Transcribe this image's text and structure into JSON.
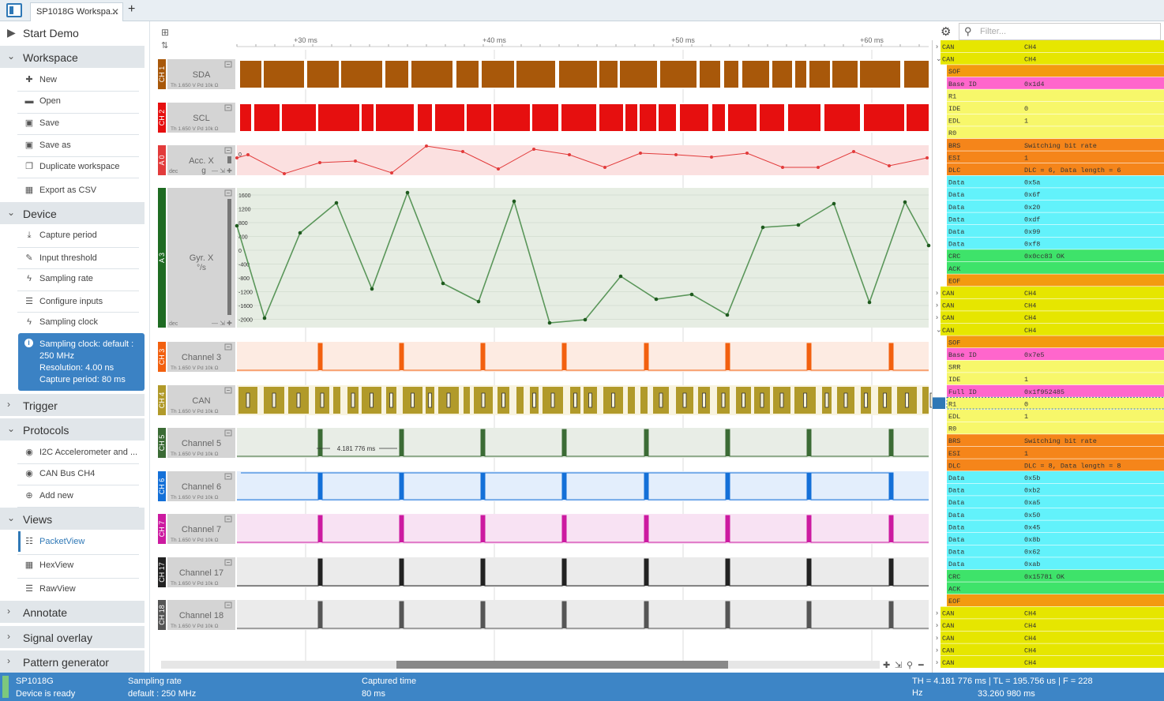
{
  "tab": {
    "title": "SP1018G Workspa...",
    "close": "✕",
    "new": "+"
  },
  "sidebar": {
    "start_demo": "Start Demo",
    "workspace": {
      "title": "Workspace",
      "items": [
        {
          "icon": "plus-icon",
          "label": "New"
        },
        {
          "icon": "folder-icon",
          "label": "Open"
        },
        {
          "icon": "save-icon",
          "label": "Save"
        },
        {
          "icon": "save-as-icon",
          "label": "Save as"
        },
        {
          "icon": "duplicate-icon",
          "label": "Duplicate workspace"
        },
        {
          "icon": "table-icon",
          "label": "Export as CSV"
        }
      ]
    },
    "device": {
      "title": "Device",
      "items": [
        {
          "icon": "download-icon",
          "label": "Capture period"
        },
        {
          "icon": "wrench-icon",
          "label": "Input threshold"
        },
        {
          "icon": "bolt-icon",
          "label": "Sampling rate"
        },
        {
          "icon": "list-icon",
          "label": "Configure inputs"
        },
        {
          "icon": "bolt-icon",
          "label": "Sampling clock"
        }
      ]
    },
    "info": [
      "Sampling clock: default :",
      "250 MHz",
      "Resolution: 4.00 ns",
      "Capture period: 80 ms"
    ],
    "trigger": "Trigger",
    "protocols": {
      "title": "Protocols",
      "items": [
        {
          "icon": "eye-icon",
          "label": "I2C Accelerometer and ..."
        },
        {
          "icon": "eye-icon",
          "label": "CAN Bus CH4"
        },
        {
          "icon": "plus-circle-icon",
          "label": "Add new"
        }
      ]
    },
    "views": {
      "title": "Views",
      "items": [
        {
          "icon": "packet-icon",
          "label": "PacketView"
        },
        {
          "icon": "hex-icon",
          "label": "HexView"
        },
        {
          "icon": "list-icon",
          "label": "RawView"
        }
      ]
    },
    "annotate": "Annotate",
    "signal_overlay": "Signal overlay",
    "pattern_generator": "Pattern generator"
  },
  "timeline": {
    "ticks": [
      "+30 ms",
      "+40 ms",
      "+50 ms",
      "+60 ms"
    ]
  },
  "channels": [
    {
      "tag": "CH 1",
      "name": "SDA",
      "sub": "Th 1.650 V   Pd 10k Ω",
      "color": "#a8580a",
      "bg": "#ffffff",
      "kind": "digital"
    },
    {
      "tag": "CH 2",
      "name": "SCL",
      "sub": "Th 1.650 V   Pd 10k Ω",
      "color": "#e60f0f",
      "bg": "#ffffff",
      "kind": "digital"
    },
    {
      "tag": "A 0",
      "name": "Acc. X",
      "unit": "g",
      "sub": "dec",
      "color": "#e23b3b",
      "bg": "#fbe0e0",
      "kind": "analog",
      "ylabel": "0"
    },
    {
      "tag": "A 3",
      "name": "Gyr. X",
      "unit": "°/s",
      "sub": "dec",
      "color": "#1e6b22",
      "bg": "#e6ede3",
      "kind": "analog2",
      "yticks": [
        "1600",
        "1200",
        "800",
        "400",
        "0",
        "-400",
        "-800",
        "-1200",
        "-1600",
        "-2000"
      ]
    },
    {
      "tag": "CH 3",
      "name": "Channel 3",
      "sub": "Th 1.650 V   Pd 10k Ω",
      "color": "#f2600f",
      "bg": "#fdebe2",
      "kind": "pulse"
    },
    {
      "tag": "CH 4",
      "name": "CAN",
      "sub": "Th 1.650 V   Pd 10k Ω",
      "color": "#b19a2a",
      "bg": "#f8f3df",
      "kind": "can"
    },
    {
      "tag": "CH 5",
      "name": "Channel 5",
      "sub": "Th 1.650 V   Pd 10k Ω",
      "color": "#3b6b35",
      "bg": "#e8ede6",
      "kind": "pulse",
      "measure": "4.181 776 ms"
    },
    {
      "tag": "CH 6",
      "name": "Channel 6",
      "sub": "Th 1.650 V   Pd 10k Ω",
      "color": "#1470d8",
      "bg": "#e3eefc",
      "kind": "pulse"
    },
    {
      "tag": "CH 7",
      "name": "Channel 7",
      "sub": "Th 1.650 V   Pd 10k Ω",
      "color": "#cc1aa0",
      "bg": "#f8e2f3",
      "kind": "pulse"
    },
    {
      "tag": "CH 17",
      "name": "Channel 17",
      "sub": "Th 1.650 V   Pd 10k Ω",
      "color": "#222222",
      "bg": "#ebebeb",
      "kind": "pulse"
    },
    {
      "tag": "CH 18",
      "name": "Channel 18",
      "sub": "Th 1.650 V   Pd 10k Ω",
      "color": "#555555",
      "bg": "#ebebeb",
      "kind": "pulse"
    }
  ],
  "packets": {
    "filter_placeholder": "Filter...",
    "rows": [
      [
        "CAN",
        "CH4",
        "#e6e600",
        "p",
        "c"
      ],
      [
        "CAN",
        "CH4",
        "#e6e600",
        "p",
        "o"
      ],
      [
        "SOF",
        "",
        "#f39a10",
        "f"
      ],
      [
        "Base ID",
        "0x1d4",
        "#ff66cc",
        "f"
      ],
      [
        "R1",
        "",
        "#f7f76a",
        "f"
      ],
      [
        "IDE",
        "0",
        "#f7f76a",
        "f"
      ],
      [
        "EDL",
        "1",
        "#f7f76a",
        "f"
      ],
      [
        "R0",
        "",
        "#f7f76a",
        "f"
      ],
      [
        "BRS",
        "Switching bit rate",
        "#f5851a",
        "f"
      ],
      [
        "ESI",
        "1",
        "#f5851a",
        "f"
      ],
      [
        "DLC",
        "DLC = 6, Data length = 6",
        "#f5851a",
        "f"
      ],
      [
        "Data",
        "0x5a",
        "#62f2fb",
        "f"
      ],
      [
        "Data",
        "0x6f",
        "#62f2fb",
        "f"
      ],
      [
        "Data",
        "0x20",
        "#62f2fb",
        "f"
      ],
      [
        "Data",
        "0xdf",
        "#62f2fb",
        "f"
      ],
      [
        "Data",
        "0x99",
        "#62f2fb",
        "f"
      ],
      [
        "Data",
        "0xf8",
        "#62f2fb",
        "f"
      ],
      [
        "CRC",
        "0x0cc83 OK",
        "#3ee36a",
        "f"
      ],
      [
        "ACK",
        "",
        "#3ee36a",
        "f"
      ],
      [
        "EOF",
        "",
        "#f39a10",
        "f"
      ],
      [
        "CAN",
        "CH4",
        "#e6e600",
        "p",
        "c"
      ],
      [
        "CAN",
        "CH4",
        "#e6e600",
        "p",
        "c"
      ],
      [
        "CAN",
        "CH4",
        "#e6e600",
        "p",
        "c"
      ],
      [
        "CAN",
        "CH4",
        "#e6e600",
        "p",
        "o"
      ],
      [
        "SOF",
        "",
        "#f39a10",
        "f"
      ],
      [
        "Base ID",
        "0x7e5",
        "#ff66cc",
        "f"
      ],
      [
        "SRR",
        "",
        "#f7f76a",
        "f"
      ],
      [
        "IDE",
        "1",
        "#f7f76a",
        "f"
      ],
      [
        "Full ID",
        "0x1f952485",
        "#ff66cc",
        "f"
      ],
      [
        "R1",
        "0",
        "#f7f76a",
        "f"
      ],
      [
        "EDL",
        "1",
        "#f7f76a",
        "f"
      ],
      [
        "R0",
        "",
        "#f7f76a",
        "f"
      ],
      [
        "BRS",
        "Switching bit rate",
        "#f5851a",
        "f"
      ],
      [
        "ESI",
        "1",
        "#f5851a",
        "f"
      ],
      [
        "DLC",
        "DLC = 8, Data length = 8",
        "#f5851a",
        "f"
      ],
      [
        "Data",
        "0x5b",
        "#62f2fb",
        "f"
      ],
      [
        "Data",
        "0xb2",
        "#62f2fb",
        "f"
      ],
      [
        "Data",
        "0xa5",
        "#62f2fb",
        "f"
      ],
      [
        "Data",
        "0x50",
        "#62f2fb",
        "f"
      ],
      [
        "Data",
        "0x45",
        "#62f2fb",
        "f"
      ],
      [
        "Data",
        "0x8b",
        "#62f2fb",
        "f"
      ],
      [
        "Data",
        "0x62",
        "#62f2fb",
        "f"
      ],
      [
        "Data",
        "0xab",
        "#62f2fb",
        "f"
      ],
      [
        "CRC",
        "0x15781 OK",
        "#3ee36a",
        "f"
      ],
      [
        "ACK",
        "",
        "#3ee36a",
        "f"
      ],
      [
        "EOF",
        "",
        "#f39a10",
        "f"
      ],
      [
        "CAN",
        "CH4",
        "#e6e600",
        "p",
        "c"
      ],
      [
        "CAN",
        "CH4",
        "#e6e600",
        "p",
        "c"
      ],
      [
        "CAN",
        "CH4",
        "#e6e600",
        "p",
        "c"
      ],
      [
        "CAN",
        "CH4",
        "#e6e600",
        "p",
        "c"
      ],
      [
        "CAN",
        "CH4",
        "#e6e600",
        "p",
        "c"
      ]
    ]
  },
  "status": {
    "device": "SP1018G",
    "device_state": "Device is ready",
    "rate_label": "Sampling rate",
    "rate_value": "default : 250 MHz",
    "time_label": "Captured time",
    "time_value": "80 ms",
    "measure_line1": "TH = 4.181 776 ms | TL = 195.756 us | F = 228 Hz",
    "measure_line2": "33.260 980 ms"
  }
}
